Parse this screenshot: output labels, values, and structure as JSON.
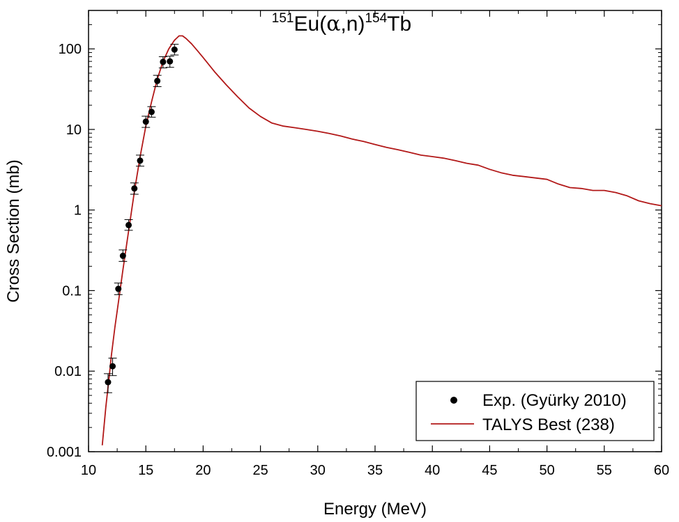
{
  "chart_data": {
    "type": "line",
    "title": {
      "sup1": "151",
      "main1": "Eu(",
      "alpha": "α",
      "main2": ",n)",
      "sup2": "154",
      "main3": "Tb"
    },
    "xlabel": "Energy (MeV)",
    "ylabel": "Cross Section (mb)",
    "xlim": [
      10,
      60
    ],
    "ylim": [
      0.001,
      300
    ],
    "yscale": "log",
    "x_ticks": [
      10,
      15,
      20,
      25,
      30,
      35,
      40,
      45,
      50,
      55,
      60
    ],
    "x_tick_labels": [
      "10",
      "15",
      "20",
      "25",
      "30",
      "35",
      "40",
      "45",
      "50",
      "55",
      "60"
    ],
    "y_ticks": [
      0.001,
      0.01,
      0.1,
      1,
      10,
      100
    ],
    "y_tick_labels": [
      "0.001",
      "0.01",
      "0.1",
      "1",
      "10",
      "100"
    ],
    "legend_position": "bottom-right",
    "series": [
      {
        "name": "Exp. (Gyürky 2010)",
        "kind": "scatter-errorbar",
        "color": "#000000",
        "x": [
          11.7,
          12.1,
          12.6,
          13.0,
          13.5,
          14.0,
          14.5,
          15.0,
          15.5,
          16.0,
          16.5,
          17.1,
          17.5
        ],
        "y": [
          0.0073,
          0.0115,
          0.105,
          0.27,
          0.65,
          1.85,
          4.1,
          12.5,
          16.5,
          40,
          69,
          70,
          98
        ],
        "yerr_low": [
          0.0054,
          0.0088,
          0.089,
          0.23,
          0.56,
          1.57,
          3.5,
          10.6,
          14.2,
          34,
          58,
          59,
          84
        ],
        "yerr_high": [
          0.0093,
          0.0145,
          0.124,
          0.32,
          0.76,
          2.17,
          4.8,
          14.6,
          19.2,
          47,
          80,
          81,
          114
        ]
      },
      {
        "name": "TALYS Best (238)",
        "kind": "line",
        "color": "#b21818",
        "x": [
          11.2,
          11.5,
          11.8,
          12.0,
          12.3,
          12.6,
          13.0,
          13.5,
          14.0,
          14.5,
          15.0,
          15.5,
          16.0,
          16.5,
          17.0,
          17.5,
          17.9,
          18.2,
          18.5,
          19.0,
          19.5,
          20.0,
          21.0,
          22.0,
          23.0,
          24.0,
          25.0,
          26.0,
          27.0,
          28.0,
          29.0,
          30.0,
          31.0,
          32.0,
          33.0,
          34.0,
          35.0,
          36.0,
          37.0,
          38.0,
          39.0,
          40.0,
          41.0,
          42.0,
          43.0,
          44.0,
          45.0,
          46.0,
          47.0,
          48.0,
          49.0,
          50.0,
          51.0,
          52.0,
          53.0,
          54.0,
          55.0,
          56.0,
          57.0,
          58.0,
          59.0,
          60.0
        ],
        "y": [
          0.0012,
          0.0035,
          0.0085,
          0.016,
          0.035,
          0.07,
          0.18,
          0.55,
          1.7,
          4.6,
          11,
          22,
          42,
          70,
          100,
          128,
          145,
          145,
          135,
          115,
          95,
          78,
          52,
          36,
          25.5,
          18.5,
          14.5,
          12,
          11,
          10.5,
          10,
          9.5,
          8.9,
          8.3,
          7.6,
          7.1,
          6.5,
          6.0,
          5.6,
          5.2,
          4.8,
          4.6,
          4.4,
          4.1,
          3.8,
          3.6,
          3.2,
          2.9,
          2.7,
          2.6,
          2.5,
          2.4,
          2.1,
          1.9,
          1.85,
          1.75,
          1.75,
          1.65,
          1.5,
          1.3,
          1.2,
          1.13
        ]
      }
    ]
  }
}
